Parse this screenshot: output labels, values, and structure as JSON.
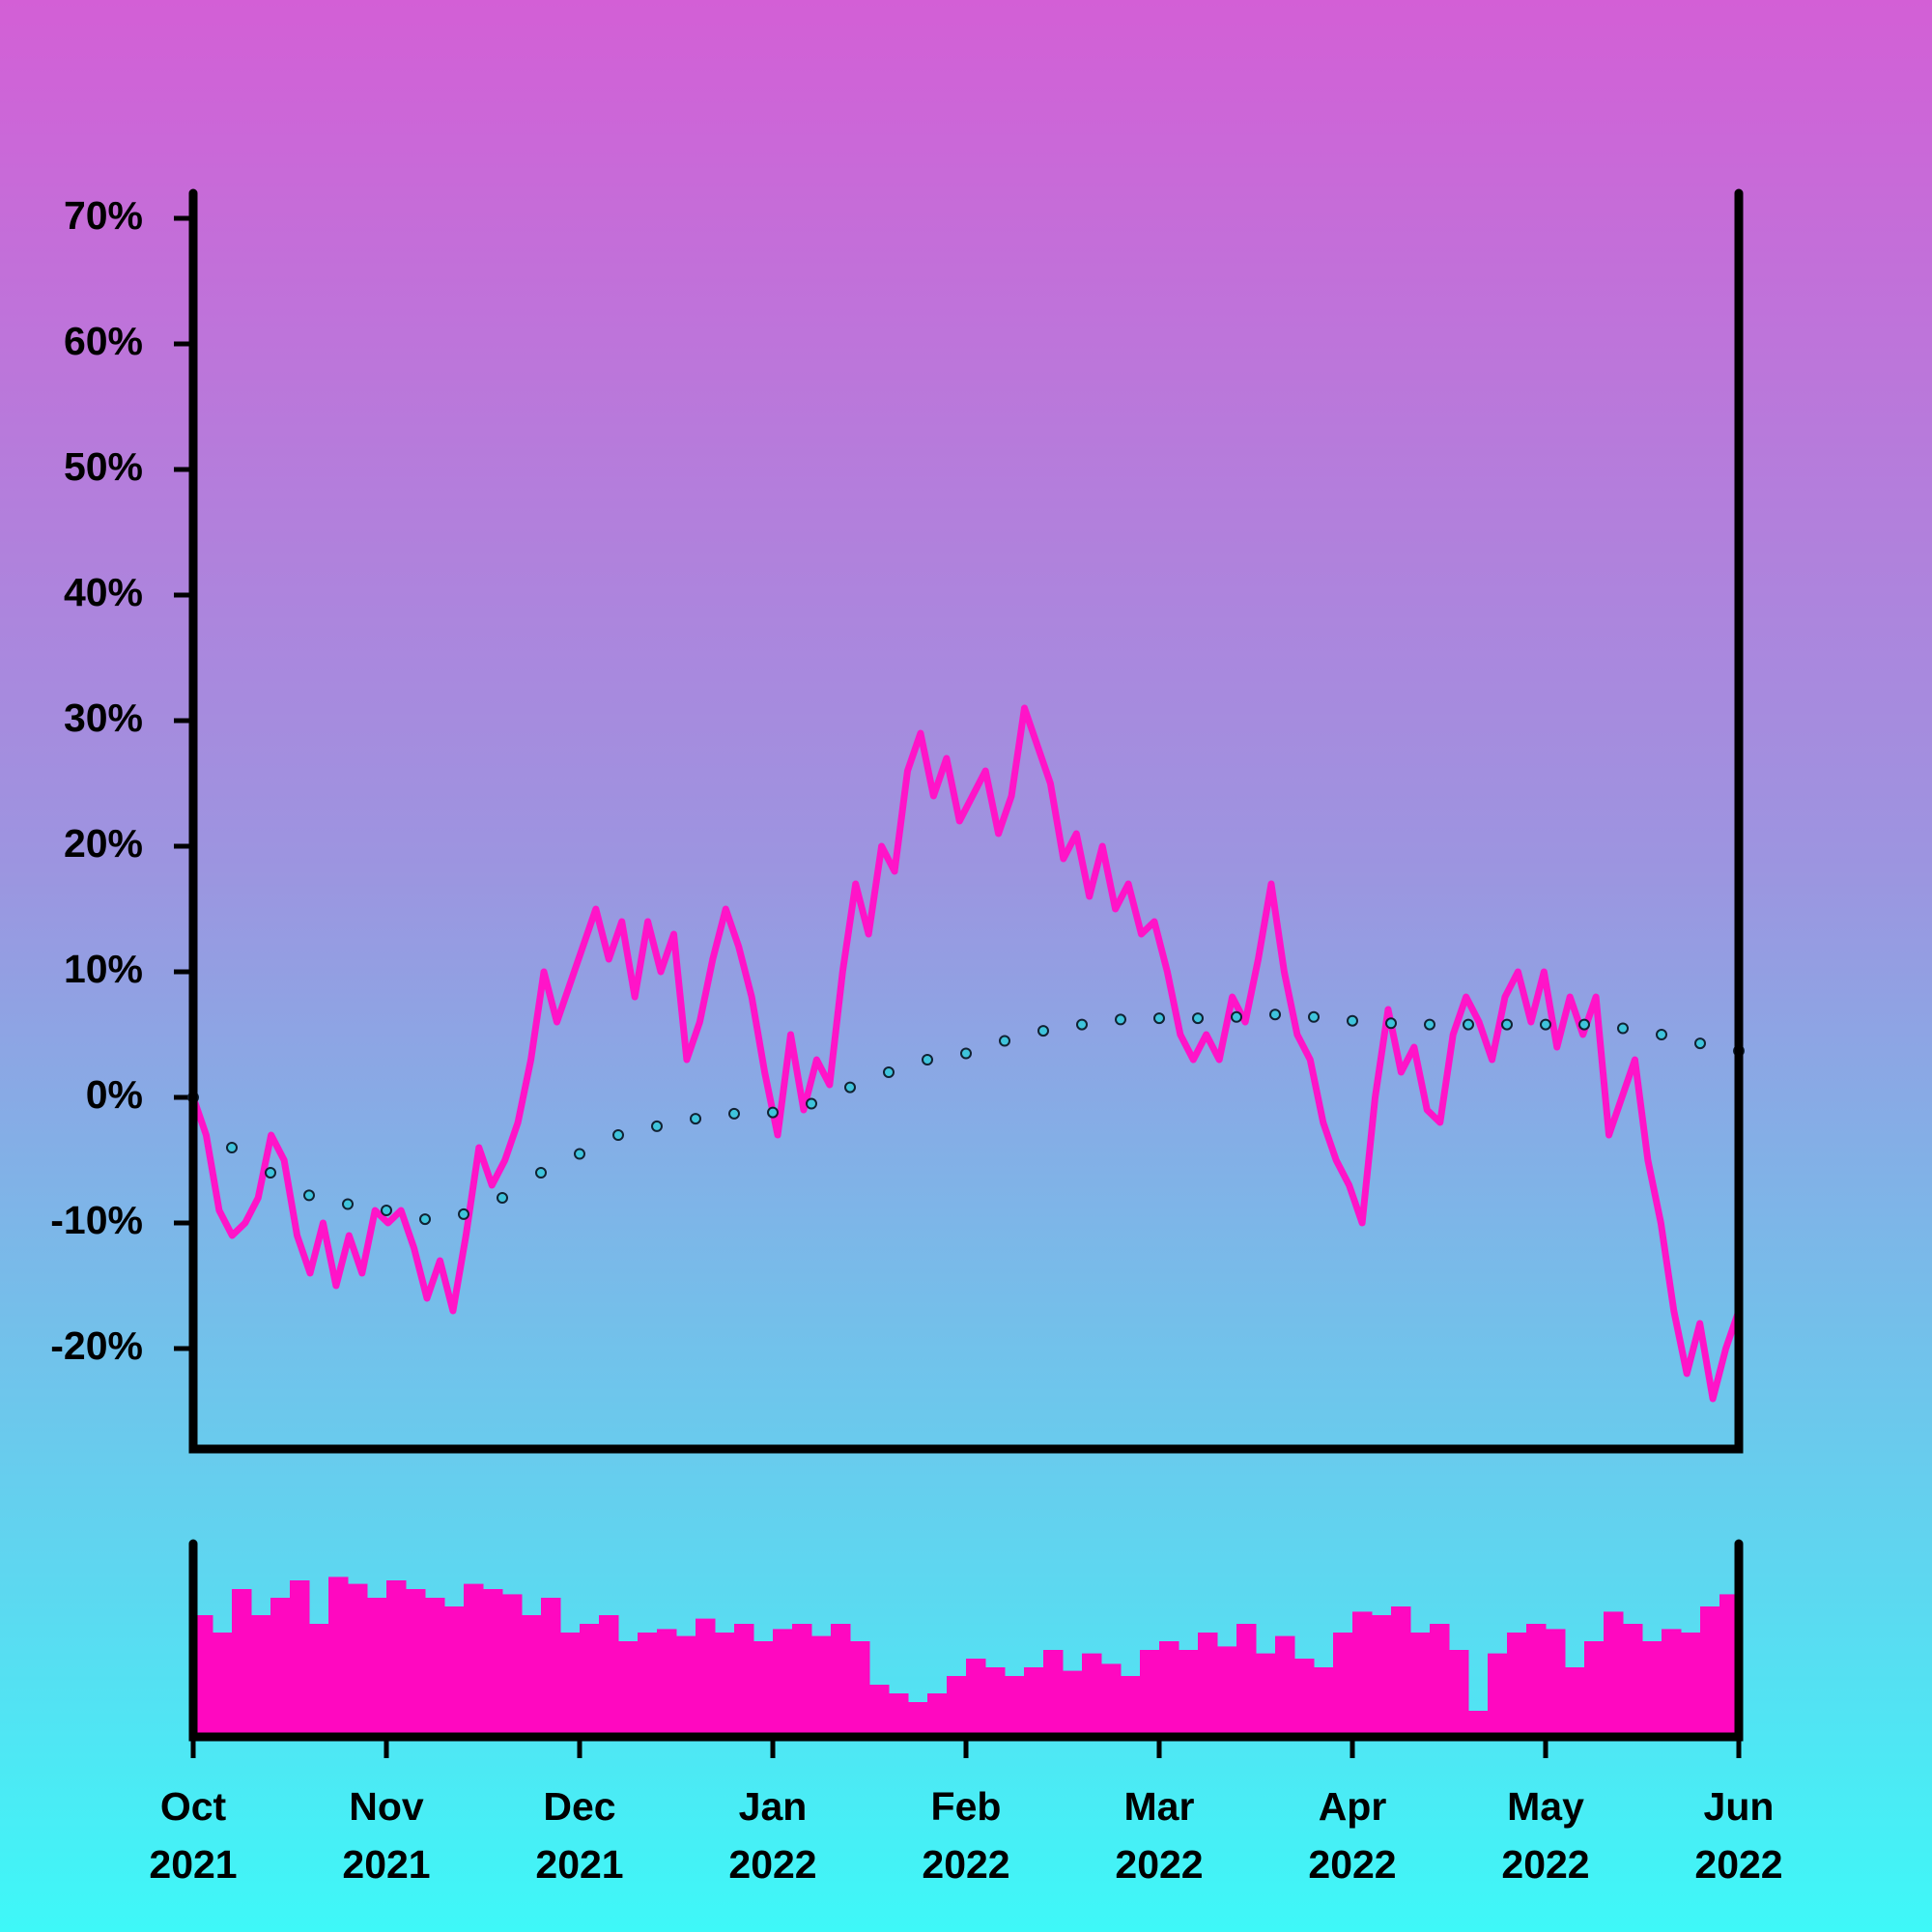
{
  "chart_data": [
    {
      "type": "line",
      "xlim": [
        0,
        8
      ],
      "xticks": [
        {
          "value": 0,
          "label": "Oct 2021"
        },
        {
          "value": 1,
          "label": "Nov 2021"
        },
        {
          "value": 2,
          "label": "Dec 2021"
        },
        {
          "value": 3,
          "label": "Jan 2022"
        },
        {
          "value": 4,
          "label": "Feb 2022"
        },
        {
          "value": 5,
          "label": "Mar 2022"
        },
        {
          "value": 6,
          "label": "Apr 2022"
        },
        {
          "value": 7,
          "label": "May 2022"
        },
        {
          "value": 8,
          "label": "Jun 2022"
        }
      ],
      "ylim": [
        -28,
        72
      ],
      "yticks": [
        {
          "value": -20,
          "label": "-20%"
        },
        {
          "value": -10,
          "label": "-10%"
        },
        {
          "value": 0,
          "label": "0%"
        },
        {
          "value": 10,
          "label": "10%"
        },
        {
          "value": 20,
          "label": "20%"
        },
        {
          "value": 30,
          "label": "30%"
        },
        {
          "value": 40,
          "label": "40%"
        },
        {
          "value": 50,
          "label": "50%"
        },
        {
          "value": 60,
          "label": "60%"
        },
        {
          "value": 70,
          "label": "70%"
        }
      ],
      "series": [
        {
          "color": "#ff14c8",
          "values": [
            0,
            -3,
            -9,
            -11,
            -10,
            -8,
            -3,
            -5,
            -11,
            -14,
            -10,
            -15,
            -11,
            -14,
            -9,
            -10,
            -9,
            -12,
            -16,
            -13,
            -17,
            -11,
            -4,
            -7,
            -5,
            -2,
            3,
            10,
            6,
            9,
            12,
            15,
            11,
            14,
            8,
            14,
            10,
            13,
            3,
            6,
            11,
            15,
            12,
            8,
            2,
            -3,
            5,
            -1,
            3,
            1,
            10,
            17,
            13,
            20,
            18,
            26,
            29,
            24,
            27,
            22,
            24,
            26,
            21,
            24,
            31,
            28,
            25,
            19,
            21,
            16,
            20,
            15,
            17,
            13,
            14,
            10,
            5,
            3,
            5,
            3,
            8,
            6,
            11,
            17,
            10,
            5,
            3,
            -2,
            -5,
            -7,
            -10,
            0,
            7,
            2,
            4,
            -1,
            -2,
            5,
            8,
            6,
            3,
            8,
            10,
            6,
            10,
            4,
            8,
            5,
            8,
            -3,
            0,
            3,
            -5,
            -10,
            -17,
            -22,
            -18,
            -24,
            -20,
            -17
          ]
        },
        {
          "color": "#3fc4dc",
          "style": "dots",
          "values": [
            0,
            -4,
            -6,
            -7.8,
            -8.5,
            -9,
            -9.7,
            -9.3,
            -8,
            -6,
            -4.5,
            -3,
            -2.3,
            -1.7,
            -1.3,
            -1.2,
            -0.5,
            0.8,
            2,
            3,
            3.5,
            4.5,
            5.3,
            5.8,
            6.2,
            6.3,
            6.3,
            6.4,
            6.6,
            6.4,
            6.1,
            5.9,
            5.8,
            5.8,
            5.8,
            5.8,
            5.8,
            5.5,
            5,
            4.3,
            3.7
          ]
        }
      ]
    },
    {
      "type": "bar",
      "color": "#ff08c0",
      "ylim": [
        0,
        100
      ],
      "values": [
        70,
        60,
        85,
        70,
        80,
        90,
        65,
        92,
        88,
        80,
        90,
        85,
        80,
        75,
        88,
        85,
        82,
        70,
        80,
        60,
        65,
        70,
        55,
        60,
        62,
        58,
        68,
        60,
        65,
        55,
        62,
        65,
        58,
        65,
        55,
        30,
        25,
        20,
        25,
        35,
        45,
        40,
        35,
        40,
        50,
        38,
        48,
        42,
        35,
        50,
        55,
        50,
        60,
        52,
        65,
        48,
        58,
        45,
        40,
        60,
        72,
        70,
        75,
        60,
        65,
        50,
        15,
        48,
        60,
        65,
        62,
        40,
        55,
        72,
        65,
        55,
        62,
        60,
        75,
        82
      ]
    }
  ]
}
